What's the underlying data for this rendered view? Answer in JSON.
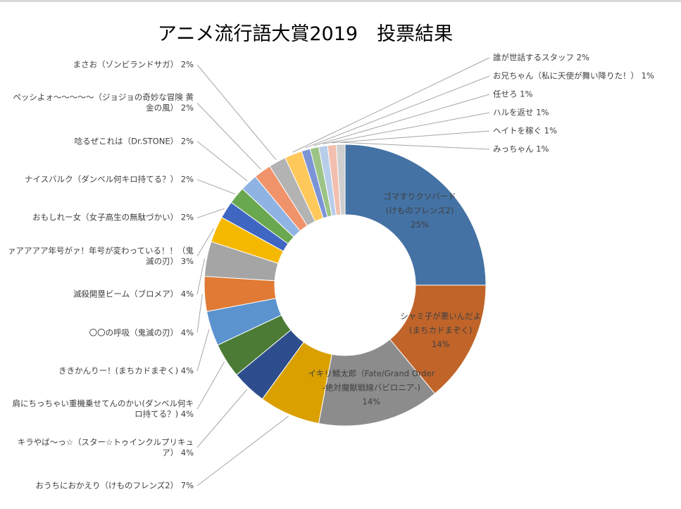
{
  "chart_data": {
    "type": "pie",
    "variant": "donut",
    "title": "アニメ流行語大賞2019　投票結果",
    "legend": "none",
    "slices": [
      {
        "label_lines": [
          "ゴマすりクソバード",
          "(けものフレンズ2)"
        ],
        "value": 25,
        "percent": "25%",
        "color": "#4472a4"
      },
      {
        "label_lines": [
          "シャミ子が悪いんだよ",
          "(まちカドまぞく)"
        ],
        "value": 14,
        "percent": "14%",
        "color": "#c0642a"
      },
      {
        "label_lines": [
          "イキリ鯖太郎（Fate/Grand  Order",
          "-絶対魔獣戦線バビロニア-)"
        ],
        "value": 14,
        "percent": "14%",
        "color": "#8c8c8c"
      },
      {
        "label_lines": [
          "おうちにおかえり",
          "（けものフレンズ",
          "2）"
        ],
        "value": 7,
        "percent": "7%",
        "color": "#d9a000"
      },
      {
        "label_lines": [
          "キラやば～っ☆（スター☆",
          "トゥインクルプリキュア）"
        ],
        "value": 4,
        "percent": "4%",
        "color": "#2e4d8c"
      },
      {
        "label_lines": [
          "肩にちっちゃい重機乗せてんのかい",
          "(ダンベル何キロ持てる？)"
        ],
        "value": 4,
        "percent": "4%",
        "color": "#4b7b34"
      },
      {
        "label_lines": [
          "ききかんりー！(まちカドまぞく)"
        ],
        "value": 4,
        "percent": "4%",
        "color": "#5b93cf"
      },
      {
        "label_lines": [
          "〇〇の呼吸（鬼滅の刃）"
        ],
        "value": 4,
        "percent": "4%",
        "color": "#e07a35"
      },
      {
        "label_lines": [
          "滅殺開塁ビーム（ブロメア）"
        ],
        "value": 4,
        "percent": "4%",
        "color": "#a5a5a5"
      },
      {
        "label_lines": [
          "ァアアアア年号がァ！年号が変わっている！！",
          "（鬼滅の刃）"
        ],
        "value": 3,
        "percent": "3%",
        "color": "#f5b800"
      },
      {
        "label_lines": [
          "おもしれー女（女子高生の無駄",
          "づかい）"
        ],
        "value": 2,
        "percent": "2%",
        "color": "#3f67c2"
      },
      {
        "label_lines": [
          "ナイスバルク（ダンベル何キロ持てる？）"
        ],
        "value": 2,
        "percent": "2%",
        "color": "#6aa84f"
      },
      {
        "label_lines": [
          "唸るぜこれは（Dr.STONE）"
        ],
        "value": 2,
        "percent": "2%",
        "color": "#8fb4e3"
      },
      {
        "label_lines": [
          "ペッシよォ～～～～～（ジョジョの奇妙な冒険 黄金の風）"
        ],
        "value": 2,
        "percent": "2%",
        "color": "#f0936a"
      },
      {
        "label_lines": [
          "まさお（ゾンビランドサガ）"
        ],
        "value": 2,
        "percent": "2%",
        "color": "#b3b3b3"
      },
      {
        "label_lines": [
          "誰が世話するスタッフ"
        ],
        "value": 2,
        "percent": "2%",
        "color": "#ffc85a"
      },
      {
        "label_lines": [
          "お兄ちゃん（私に天使が舞い降りた！）"
        ],
        "value": 1,
        "percent": "1%",
        "color": "#7a94d6"
      },
      {
        "label_lines": [
          "任せろ"
        ],
        "value": 1,
        "percent": "1%",
        "color": "#9cc486"
      },
      {
        "label_lines": [
          "ハルを返せ"
        ],
        "value": 1,
        "percent": "1%",
        "color": "#b8cde9"
      },
      {
        "label_lines": [
          "ヘイトを稼ぐ"
        ],
        "value": 1,
        "percent": "1%",
        "color": "#f2bfae"
      },
      {
        "label_lines": [
          "みっちゃん"
        ],
        "value": 1,
        "percent": "1%",
        "color": "#cfcfcf"
      }
    ]
  }
}
